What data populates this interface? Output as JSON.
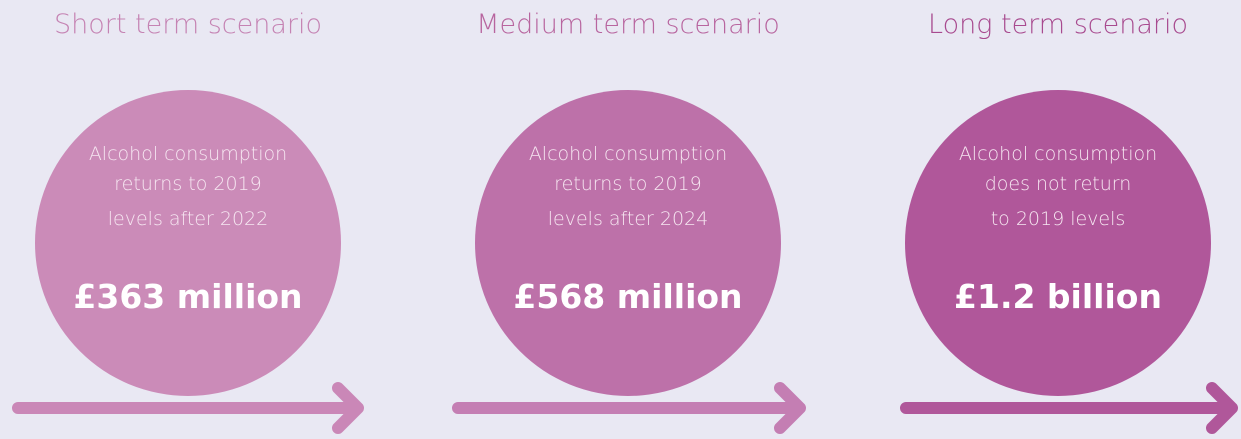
{
  "scenarios": [
    {
      "title": "Short term scenario",
      "description": [
        "Alcohol consumption",
        "returns to 2019",
        "levels after 2022"
      ],
      "amount": "£363 million"
    },
    {
      "title": "Medium term scenario",
      "description": [
        "Alcohol consumption",
        "returns to 2019",
        "levels after 2024"
      ],
      "amount": "£568 million"
    },
    {
      "title": "Long term scenario",
      "description": [
        "Alcohol consumption",
        "does not return",
        "to 2019 levels"
      ],
      "amount": "£1.2 billion"
    }
  ]
}
